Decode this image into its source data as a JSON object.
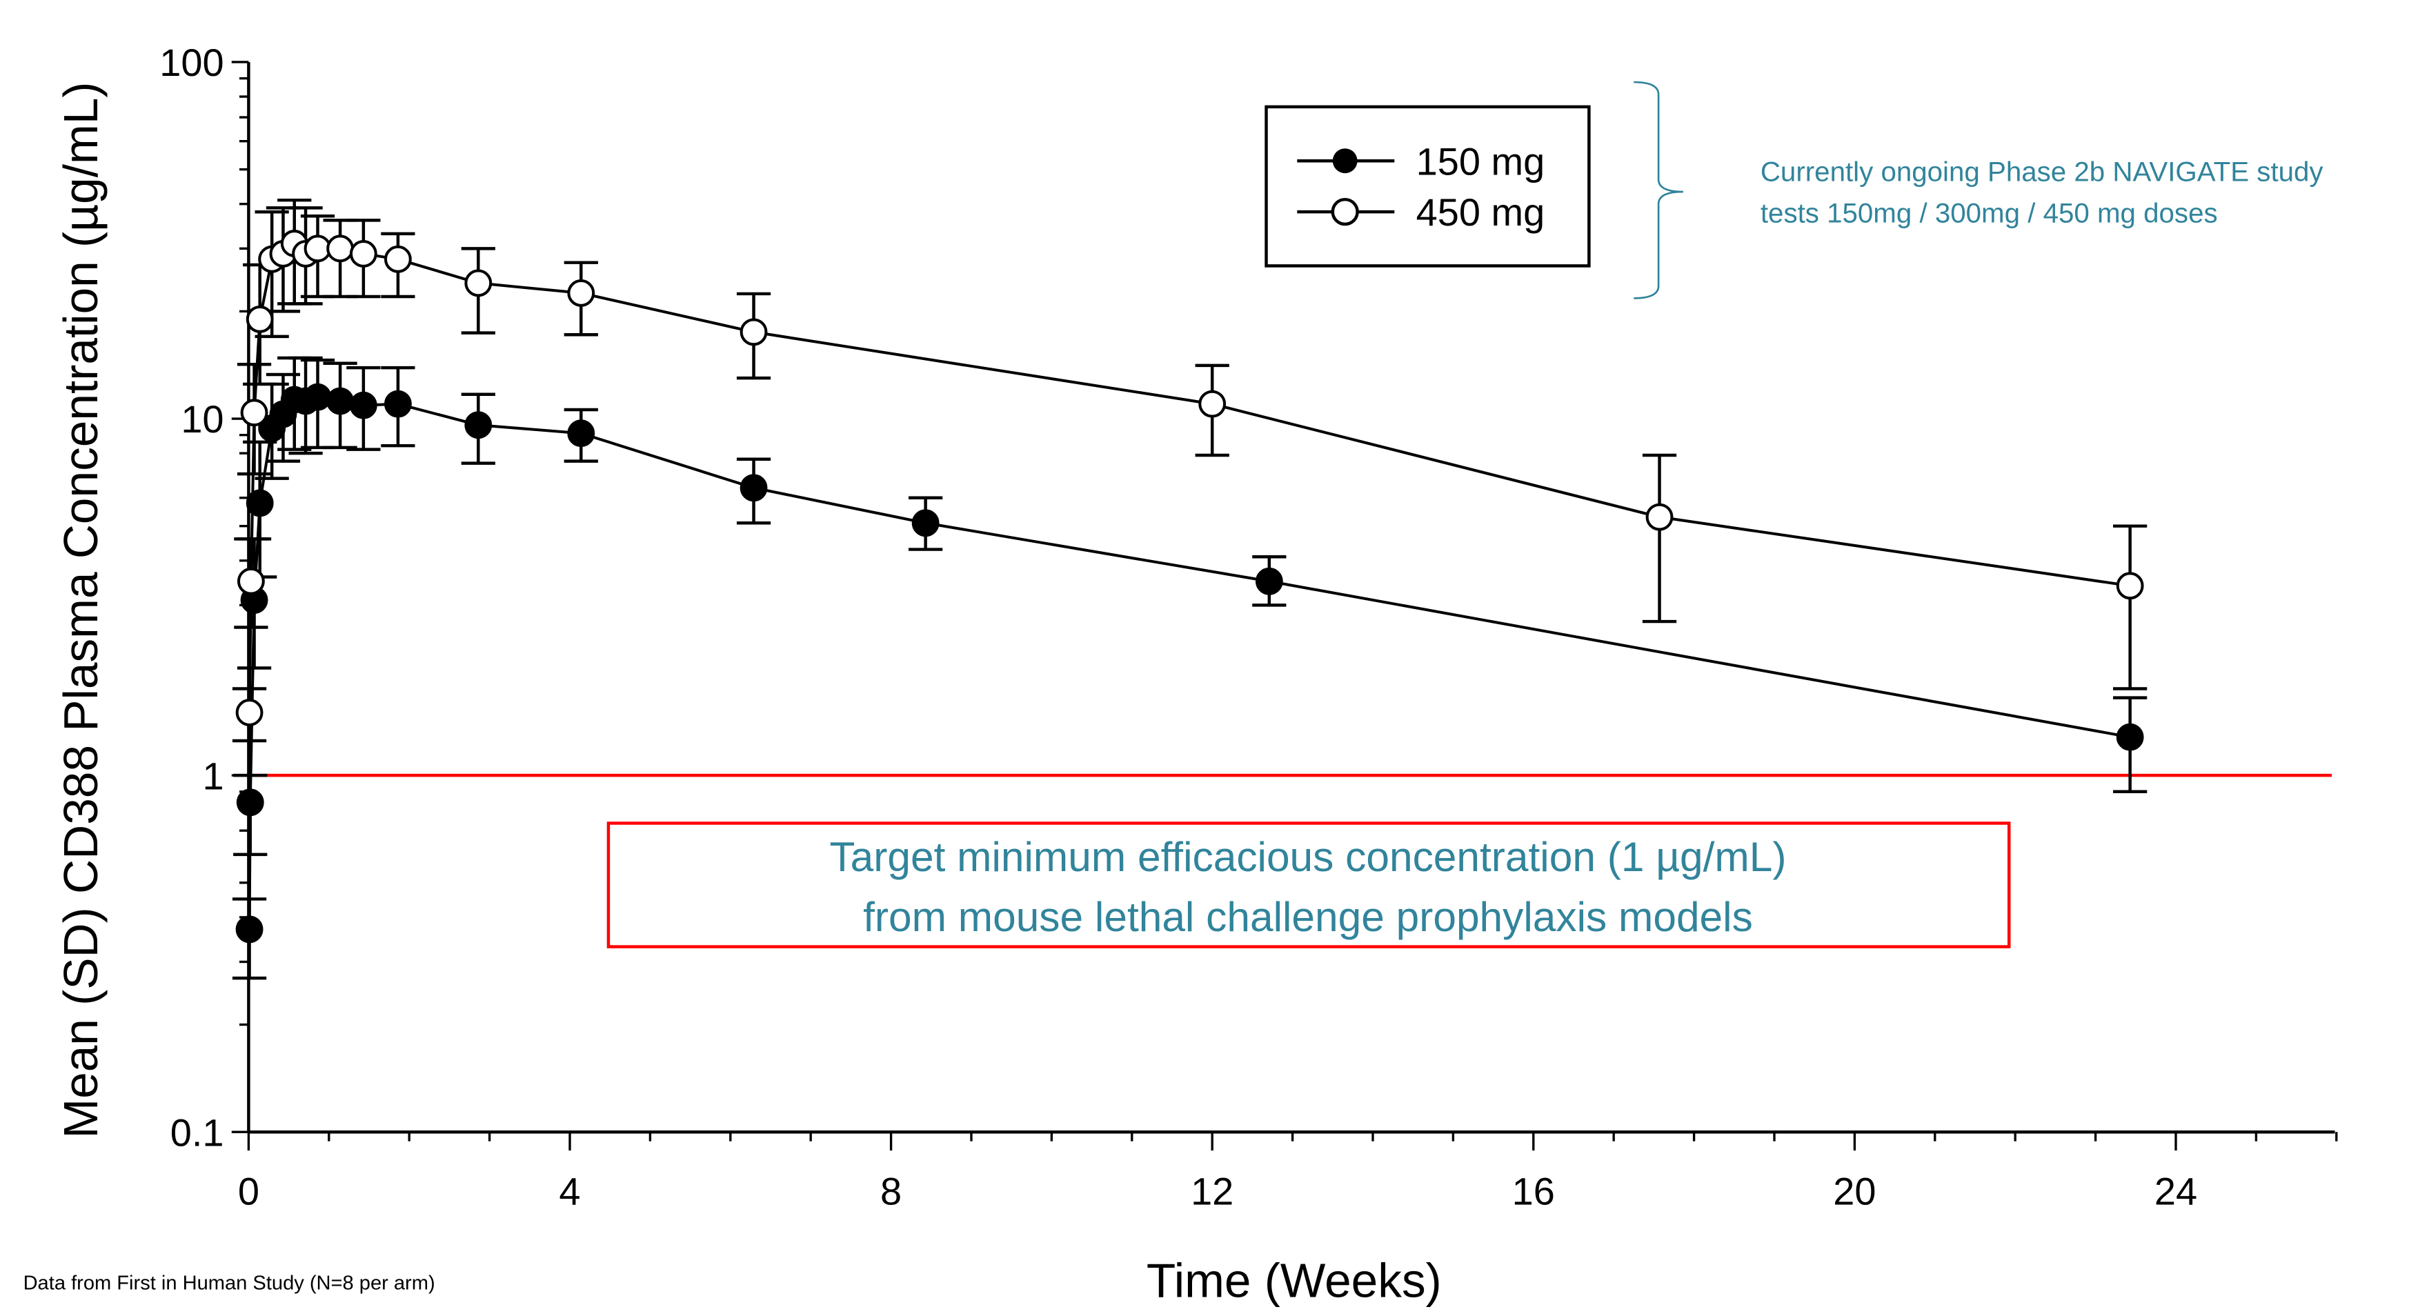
{
  "chart_data": {
    "type": "line",
    "title": "",
    "xlabel": "Time (Weeks)",
    "ylabel": "Mean (SD) CD388 Plasma Concentration (µg/mL)",
    "xlim": [
      0,
      26
    ],
    "ylim": [
      0.1,
      100
    ],
    "yscale": "log",
    "x_ticks": [
      "0",
      "4",
      "8",
      "12",
      "16",
      "20",
      "24"
    ],
    "y_ticks": [
      "0.1",
      "1",
      "10",
      "100"
    ],
    "grid": false,
    "legend_position": "top-center",
    "series": [
      {
        "name": "150 mg",
        "marker": "filled-circle",
        "color": "#000000",
        "points": [
          {
            "x": 0.01,
            "y": 0.37,
            "lo": 0.27,
            "hi": 0.45
          },
          {
            "x": 0.02,
            "y": 0.84,
            "lo": 0.6,
            "hi": 1.0
          },
          {
            "x": 0.07,
            "y": 3.1,
            "lo": 2.0,
            "hi": 4.6
          },
          {
            "x": 0.14,
            "y": 5.8,
            "lo": 3.6,
            "hi": 8.6
          },
          {
            "x": 0.29,
            "y": 9.4,
            "lo": 6.8,
            "hi": 12.5
          },
          {
            "x": 0.43,
            "y": 10.3,
            "lo": 7.6,
            "hi": 13.3
          },
          {
            "x": 0.57,
            "y": 11.3,
            "lo": 8.2,
            "hi": 14.8
          },
          {
            "x": 0.71,
            "y": 11.2,
            "lo": 8.0,
            "hi": 14.8
          },
          {
            "x": 0.86,
            "y": 11.5,
            "lo": 8.3,
            "hi": 14.6
          },
          {
            "x": 1.14,
            "y": 11.2,
            "lo": 8.3,
            "hi": 14.3
          },
          {
            "x": 1.43,
            "y": 10.9,
            "lo": 8.2,
            "hi": 13.9
          },
          {
            "x": 1.86,
            "y": 11.0,
            "lo": 8.4,
            "hi": 13.9
          },
          {
            "x": 2.86,
            "y": 9.6,
            "lo": 7.5,
            "hi": 11.7
          },
          {
            "x": 4.14,
            "y": 9.1,
            "lo": 7.6,
            "hi": 10.6
          },
          {
            "x": 6.29,
            "y": 6.4,
            "lo": 5.1,
            "hi": 7.7
          },
          {
            "x": 8.43,
            "y": 5.1,
            "lo": 4.3,
            "hi": 6.0
          },
          {
            "x": 12.71,
            "y": 3.5,
            "lo": 3.0,
            "hi": 4.1
          },
          {
            "x": 23.43,
            "y": 1.28,
            "lo": 0.9,
            "hi": 1.65
          }
        ]
      },
      {
        "name": "450 mg",
        "marker": "open-circle",
        "color": "#000000",
        "points": [
          {
            "x": 0.01,
            "y": 1.5,
            "lo": 1.25,
            "hi": 1.75
          },
          {
            "x": 0.03,
            "y": 3.5,
            "lo": 2.6,
            "hi": 4.6
          },
          {
            "x": 0.07,
            "y": 10.4,
            "lo": 7.0,
            "hi": 14.2
          },
          {
            "x": 0.14,
            "y": 19,
            "lo": 12.5,
            "hi": 27
          },
          {
            "x": 0.29,
            "y": 28,
            "lo": 17,
            "hi": 38
          },
          {
            "x": 0.43,
            "y": 29,
            "lo": 20,
            "hi": 39
          },
          {
            "x": 0.57,
            "y": 31,
            "lo": 21,
            "hi": 41
          },
          {
            "x": 0.71,
            "y": 29,
            "lo": 21,
            "hi": 39
          },
          {
            "x": 0.86,
            "y": 30,
            "lo": 22,
            "hi": 37
          },
          {
            "x": 1.14,
            "y": 30,
            "lo": 22,
            "hi": 36
          },
          {
            "x": 1.43,
            "y": 29,
            "lo": 22,
            "hi": 36
          },
          {
            "x": 1.86,
            "y": 28,
            "lo": 22,
            "hi": 33
          },
          {
            "x": 2.86,
            "y": 24,
            "lo": 17.4,
            "hi": 30
          },
          {
            "x": 4.14,
            "y": 22.5,
            "lo": 17.2,
            "hi": 27.4
          },
          {
            "x": 6.29,
            "y": 17.5,
            "lo": 13,
            "hi": 22.4
          },
          {
            "x": 12.0,
            "y": 11,
            "lo": 7.9,
            "hi": 14.1
          },
          {
            "x": 17.57,
            "y": 5.3,
            "lo": 2.7,
            "hi": 7.9
          },
          {
            "x": 23.43,
            "y": 3.4,
            "lo": 1.75,
            "hi": 5.0
          }
        ]
      }
    ],
    "reference_line": {
      "y": 1,
      "color": "#ff0000"
    },
    "annotations": {
      "target_line1": "Target minimum efficacious concentration (1 µg/mL)",
      "target_line2": "from mouse lethal challenge prophylaxis models",
      "study_line1": "Currently ongoing Phase 2b NAVIGATE study",
      "study_line2": "tests 150mg / 300mg / 450 mg doses",
      "footnote": "Data from First in Human Study (N=8 per arm)"
    },
    "colors": {
      "annotation_text": "#31849b",
      "target_box": "#ff0000"
    }
  }
}
